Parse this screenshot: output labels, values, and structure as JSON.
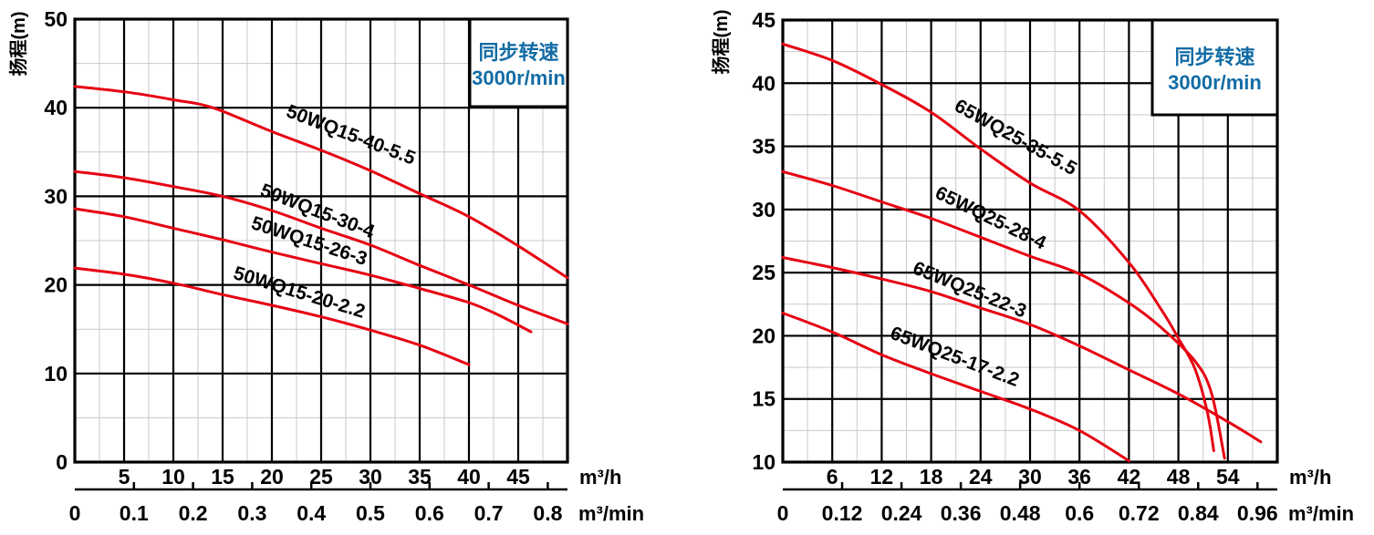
{
  "colors": {
    "curve_red": "#e60012",
    "legend_blue": "#136ca5",
    "grid_major": "#000000",
    "grid_minor": "#c9c9c9",
    "text_black": "#000000",
    "background": "#ffffff"
  },
  "chart_data": [
    {
      "type": "line",
      "title": "",
      "ylabel": "扬程(m)",
      "x_unit_primary": "m³/h",
      "x_unit_secondary": "m³/min",
      "legend_box_lines": [
        "同步转速",
        "3000r/min"
      ],
      "xlim": [
        0,
        50
      ],
      "ylim": [
        0,
        50
      ],
      "x_major_step": 5,
      "x_minor_step": 2.5,
      "y_major_step": 10,
      "y_minor_step": 5,
      "x_ticks": [
        5,
        10,
        15,
        20,
        25,
        30,
        35,
        40,
        45
      ],
      "y_ticks": [
        0,
        10,
        20,
        30,
        40,
        50
      ],
      "x2_ticks": [
        0,
        0.1,
        0.2,
        0.3,
        0.4,
        0.5,
        0.6,
        0.7,
        0.8
      ],
      "x2_factor": 60,
      "grid": true,
      "legend_position": "top-right",
      "series": [
        {
          "name": "50WQ15-40-5.5",
          "points": [
            [
              0,
              42.4
            ],
            [
              5,
              41.8
            ],
            [
              10,
              40.9
            ],
            [
              14,
              40.0
            ],
            [
              20,
              37.3
            ],
            [
              25,
              35.2
            ],
            [
              30,
              32.9
            ],
            [
              35,
              30.3
            ],
            [
              40,
              27.7
            ],
            [
              45,
              24.4
            ],
            [
              50,
              20.8
            ]
          ],
          "label_at": [
            27.8,
            36.3
          ],
          "label_angle": 21
        },
        {
          "name": "50WQ15-30-4",
          "points": [
            [
              0,
              32.8
            ],
            [
              5,
              32.1
            ],
            [
              10,
              31.1
            ],
            [
              15,
              30.0
            ],
            [
              20,
              28.4
            ],
            [
              25,
              26.4
            ],
            [
              30,
              24.5
            ],
            [
              35,
              22.2
            ],
            [
              40,
              20.0
            ],
            [
              45,
              17.7
            ],
            [
              50,
              15.6
            ]
          ],
          "label_at": [
            24.4,
            27.7
          ],
          "label_angle": 21
        },
        {
          "name": "50WQ15-26-3",
          "points": [
            [
              0,
              28.6
            ],
            [
              5,
              27.7
            ],
            [
              10,
              26.4
            ],
            [
              15,
              25.1
            ],
            [
              20,
              23.7
            ],
            [
              25,
              22.4
            ],
            [
              30,
              21.1
            ],
            [
              35,
              19.6
            ],
            [
              40,
              18.0
            ],
            [
              43,
              16.6
            ],
            [
              46.3,
              14.7
            ]
          ],
          "label_at": [
            23.6,
            24.3
          ],
          "label_angle": 18
        },
        {
          "name": "50WQ15-20-2.2",
          "points": [
            [
              0,
              21.9
            ],
            [
              5,
              21.2
            ],
            [
              10,
              20.2
            ],
            [
              15,
              18.9
            ],
            [
              20,
              17.7
            ],
            [
              25,
              16.4
            ],
            [
              30,
              14.9
            ],
            [
              35,
              13.2
            ],
            [
              40,
              11.0
            ]
          ],
          "label_at": [
            22.6,
            18.5
          ],
          "label_angle": 17
        }
      ]
    },
    {
      "type": "line",
      "title": "",
      "ylabel": "扬程(m)",
      "x_unit_primary": "m³/h",
      "x_unit_secondary": "m³/min",
      "legend_box_lines": [
        "同步转速",
        "3000r/min"
      ],
      "xlim": [
        0,
        60
      ],
      "ylim": [
        10,
        45
      ],
      "x_major_step": 6,
      "x_minor_step": 3,
      "y_major_step": 5,
      "y_minor_step": 2.5,
      "x_ticks": [
        6,
        12,
        18,
        24,
        30,
        36,
        42,
        48,
        54
      ],
      "y_ticks": [
        10,
        15,
        20,
        25,
        30,
        35,
        40,
        45
      ],
      "x2_ticks": [
        0,
        0.12,
        0.24,
        0.36,
        0.48,
        0.6,
        0.72,
        0.84,
        0.96
      ],
      "x2_factor": 60,
      "grid": true,
      "legend_position": "top-right",
      "series": [
        {
          "name": "65WQ25-35-5.5",
          "points": [
            [
              0,
              43.1
            ],
            [
              6,
              41.8
            ],
            [
              12,
              39.9
            ],
            [
              18,
              37.7
            ],
            [
              24,
              34.8
            ],
            [
              30,
              32.1
            ],
            [
              36,
              29.9
            ],
            [
              42,
              25.8
            ],
            [
              46,
              22.0
            ],
            [
              48,
              19.8
            ],
            [
              50,
              17.4
            ],
            [
              51.5,
              14.0
            ],
            [
              52.3,
              10.9
            ]
          ],
          "label_at": [
            27.9,
            35.3
          ],
          "label_angle": 29
        },
        {
          "name": "65WQ25-28-4",
          "points": [
            [
              0,
              33.0
            ],
            [
              6,
              31.9
            ],
            [
              12,
              30.6
            ],
            [
              18,
              29.3
            ],
            [
              24,
              27.8
            ],
            [
              30,
              26.3
            ],
            [
              36,
              24.9
            ],
            [
              42,
              22.6
            ],
            [
              46,
              20.6
            ],
            [
              50,
              18.0
            ],
            [
              52,
              15.5
            ],
            [
              53.6,
              10.3
            ]
          ],
          "label_at": [
            24.9,
            28.9
          ],
          "label_angle": 26
        },
        {
          "name": "65WQ25-22-3",
          "points": [
            [
              0,
              26.2
            ],
            [
              6,
              25.4
            ],
            [
              12,
              24.5
            ],
            [
              18,
              23.5
            ],
            [
              24,
              22.2
            ],
            [
              30,
              20.9
            ],
            [
              36,
              19.2
            ],
            [
              42,
              17.3
            ],
            [
              48,
              15.4
            ],
            [
              54,
              13.2
            ],
            [
              58,
              11.6
            ]
          ],
          "label_at": [
            22.4,
            23.2
          ],
          "label_angle": 22
        },
        {
          "name": "65WQ25-17-2.2",
          "points": [
            [
              0,
              21.8
            ],
            [
              6,
              20.3
            ],
            [
              12,
              18.5
            ],
            [
              18,
              17.0
            ],
            [
              24,
              15.6
            ],
            [
              30,
              14.2
            ],
            [
              36,
              12.5
            ],
            [
              42,
              10.1
            ]
          ],
          "label_at": [
            20.6,
            17.9
          ],
          "label_angle": 21
        }
      ]
    }
  ]
}
